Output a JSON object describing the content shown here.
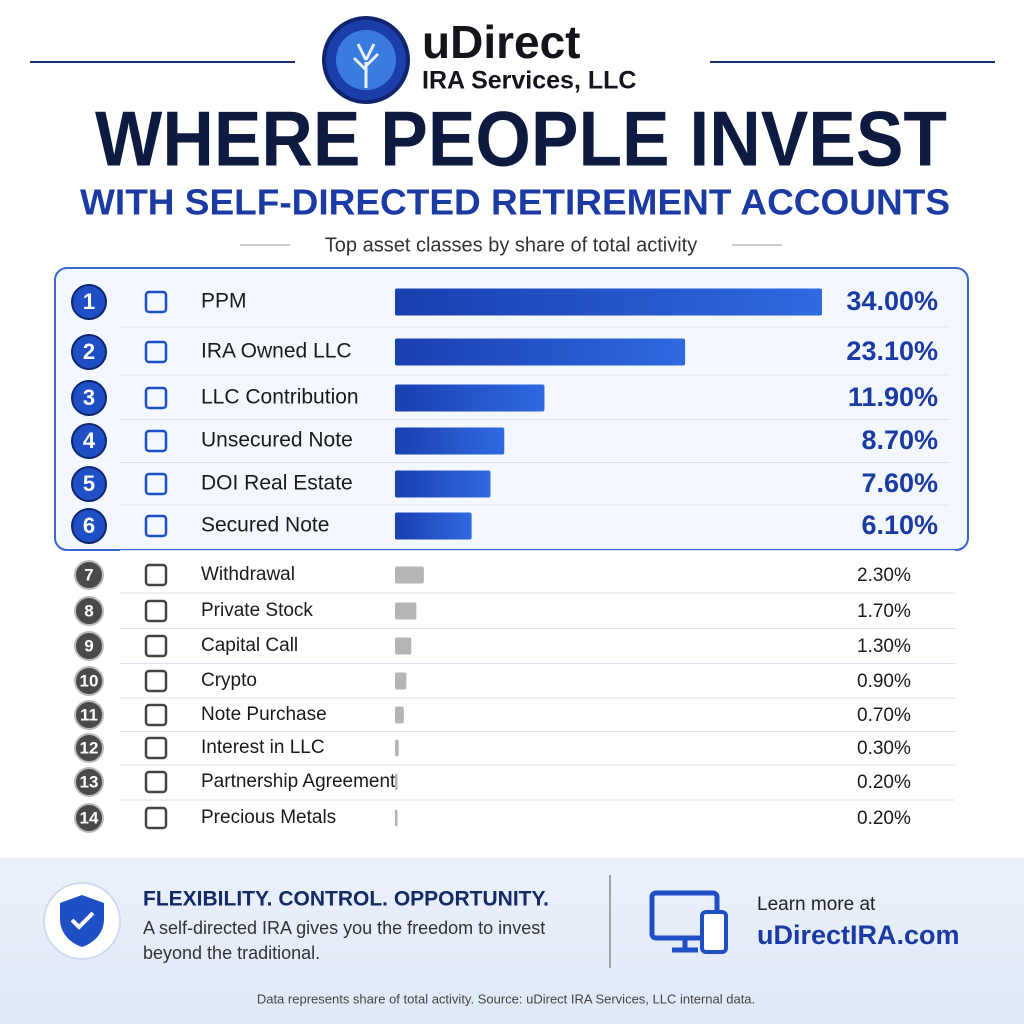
{
  "header": {
    "brand": "uDirect",
    "brand_sub": "IRA Services, LLC",
    "caption": "Top asset classes by share of total activity"
  },
  "chart_data": {
    "type": "bar",
    "orientation": "horizontal",
    "title": "WHERE PEOPLE INVEST",
    "subtitle": "WITH SELF-DIRECTED RETIREMENT ACCOUNTS",
    "ranks": [
      1,
      2,
      3,
      4,
      5,
      6,
      7,
      8,
      9,
      10,
      11,
      12,
      13,
      14
    ],
    "categories": [
      "PPM",
      "IRA Owned LLC",
      "LLC Contribution",
      "Unsecured Note",
      "DOI Real Estate",
      "Secured Note",
      "Withdrawal",
      "Private Stock",
      "Capital Call",
      "Crypto",
      "Note Purchase",
      "Interest in LLC",
      "Partnership Agreement",
      "Precious Metals"
    ],
    "values": [
      34.0,
      23.1,
      11.9,
      8.7,
      7.6,
      6.1,
      2.3,
      1.7,
      1.3,
      0.9,
      0.7,
      0.3,
      0.2,
      0.2
    ],
    "value_labels": [
      "34.00%",
      "23.10%",
      "11.90%",
      "8.70%",
      "7.60%",
      "6.10%",
      "2.30%",
      "1.70%",
      "1.30%",
      "0.90%",
      "0.70%",
      "0.30%",
      "0.20%",
      "0.20%"
    ],
    "colors": [
      "#1f4fc4",
      "#1f4fc4",
      "#1f4fc4",
      "#1f4fc4",
      "#1f4fc4",
      "#1f4fc4",
      "#b5b5b5",
      "#b5b5b5",
      "#b5b5b5",
      "#b5b5b5",
      "#b5b5b5",
      "#b5b5b5",
      "#b5b5b5",
      "#b5b5b5"
    ]
  },
  "footer": {
    "headline": "FLEXIBILITY. CONTROL. OPPORTUNITY.",
    "body_lines": [
      "A self-directed IRA gives you the freedom to invest",
      "beyond the traditional."
    ],
    "cta_label": "Learn more at",
    "cta_url": "uDirectIRA.com",
    "source": "Data represents share of total activity. Source: uDirect IRA Services, LLC internal data."
  }
}
